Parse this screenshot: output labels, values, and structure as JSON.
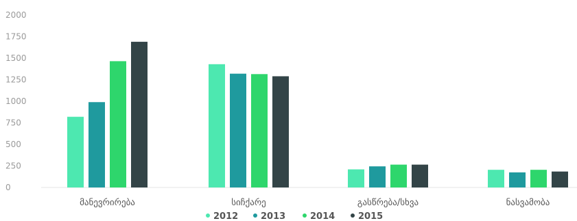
{
  "chart_data": {
    "type": "bar",
    "categories": [
      "მანევრირება",
      "სიჩქარე",
      "გასწრება/სხვა",
      "ნასვამობა"
    ],
    "series": [
      {
        "name": "2012",
        "color": "#4de8b0",
        "values": [
          820,
          1430,
          210,
          205
        ]
      },
      {
        "name": "2013",
        "color": "#1f9a9e",
        "values": [
          990,
          1320,
          245,
          175
        ]
      },
      {
        "name": "2014",
        "color": "#2ed66c",
        "values": [
          1465,
          1315,
          265,
          205
        ]
      },
      {
        "name": "2015",
        "color": "#334447",
        "values": [
          1690,
          1290,
          265,
          185
        ]
      }
    ],
    "yticks": [
      "2000",
      "1750",
      "1500",
      "1250",
      "1000",
      "750",
      "500",
      "250",
      "0"
    ],
    "ylim": [
      0,
      2000
    ],
    "title": "",
    "xlabel": "",
    "ylabel": "",
    "grid": false,
    "legend_position": "bottom-center"
  }
}
